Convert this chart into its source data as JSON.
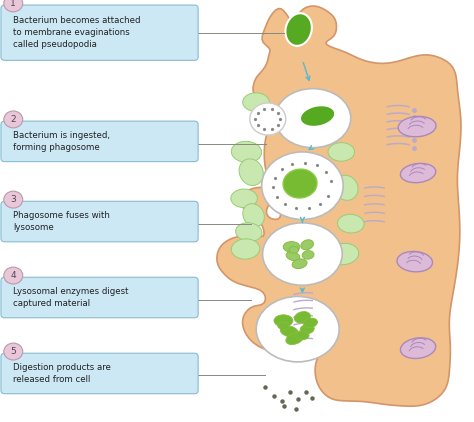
{
  "bg": "#ffffff",
  "cell_fill": "#f2c08a",
  "cell_edge": "#d4956a",
  "box_fill": "#cce8f4",
  "box_edge": "#88bbd0",
  "arrow_color": "#55bbcc",
  "circle_fill": "#e8c8d8",
  "circle_edge": "#bb99aa",
  "green_dark": "#55aa22",
  "green_mid": "#77bb33",
  "green_light": "#99cc66",
  "white": "#ffffff",
  "lyso_fill": "#c8e8b0",
  "lyso_edge": "#88bb66",
  "mito_fill": "#ddbbd8",
  "mito_edge": "#aa88bb",
  "er_color": "#bbaacc",
  "dot_color": "#666655",
  "line_color": "#888880",
  "steps": [
    {
      "num": "1",
      "text": "Bacterium becomes attached\nto membrane evaginations\ncalled pseudopodia",
      "bx": 0.01,
      "by": 0.865,
      "bw": 0.4,
      "bh": 0.115
    },
    {
      "num": "2",
      "text": "Bacterium is ingested,\nforming phagosome",
      "bx": 0.01,
      "by": 0.625,
      "bw": 0.4,
      "bh": 0.08
    },
    {
      "num": "3",
      "text": "Phagosome fuses with\nlysosome",
      "bx": 0.01,
      "by": 0.435,
      "bw": 0.4,
      "bh": 0.08
    },
    {
      "num": "4",
      "text": "Lysosomal enzymes digest\ncaptured material",
      "bx": 0.01,
      "by": 0.255,
      "bw": 0.4,
      "bh": 0.08
    },
    {
      "num": "5",
      "text": "Digestion products are\nreleased from cell",
      "bx": 0.01,
      "by": 0.075,
      "bw": 0.4,
      "bh": 0.08
    }
  ]
}
